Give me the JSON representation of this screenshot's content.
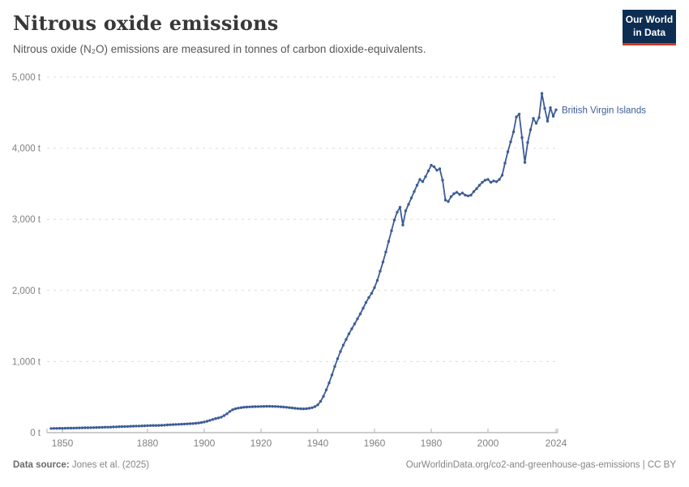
{
  "header": {
    "title": "Nitrous oxide emissions",
    "subtitle": "Nitrous oxide (N₂O) emissions are measured in tonnes of carbon dioxide-equivalents.",
    "logo": {
      "line1": "Our World",
      "line2": "in Data"
    }
  },
  "footer": {
    "source_label": "Data source:",
    "source_value": " Jones et al. (2025)",
    "link": "OurWorldinData.org/co2-and-greenhouse-gas-emissions | CC BY"
  },
  "colors": {
    "line": "#3d5c96",
    "entity_label": "#3d5c96",
    "grid": "#dcdcdc",
    "axis": "#9b9b9b",
    "tick": "#b0b0b0",
    "logo_navy": "#0d2e52",
    "logo_red": "#cc3b2a"
  },
  "chart_data": {
    "type": "line",
    "title": "Nitrous oxide emissions",
    "subtitle": "Nitrous oxide (N₂O) emissions are measured in tonnes of carbon dioxide-equivalents.",
    "entity": "British Virgin Islands",
    "unit": "t",
    "xlabel": "",
    "ylabel": "",
    "ylim": [
      0,
      5000
    ],
    "xlim": [
      1846,
      2027
    ],
    "grid": true,
    "legend_position": "end-of-line-label",
    "yticks": [
      {
        "value": 0,
        "label": "0 t"
      },
      {
        "value": 1000,
        "label": "1,000 t"
      },
      {
        "value": 2000,
        "label": "2,000 t"
      },
      {
        "value": 3000,
        "label": "3,000 t"
      },
      {
        "value": 4000,
        "label": "4,000 t"
      },
      {
        "value": 5000,
        "label": "5,000 t"
      }
    ],
    "xticks": [
      {
        "value": 1850,
        "label": "1850"
      },
      {
        "value": 1880,
        "label": "1880"
      },
      {
        "value": 1900,
        "label": "1900"
      },
      {
        "value": 1920,
        "label": "1920"
      },
      {
        "value": 1940,
        "label": "1940"
      },
      {
        "value": 1960,
        "label": "1960"
      },
      {
        "value": 1980,
        "label": "1980"
      },
      {
        "value": 2000,
        "label": "2000"
      },
      {
        "value": 2024,
        "label": "2024"
      }
    ],
    "points": [
      [
        1846,
        58
      ],
      [
        1847,
        59
      ],
      [
        1848,
        59
      ],
      [
        1849,
        60
      ],
      [
        1850,
        61
      ],
      [
        1851,
        62
      ],
      [
        1852,
        63
      ],
      [
        1853,
        63
      ],
      [
        1854,
        64
      ],
      [
        1855,
        65
      ],
      [
        1856,
        66
      ],
      [
        1857,
        67
      ],
      [
        1858,
        68
      ],
      [
        1859,
        69
      ],
      [
        1860,
        70
      ],
      [
        1861,
        71
      ],
      [
        1862,
        72
      ],
      [
        1863,
        73
      ],
      [
        1864,
        74
      ],
      [
        1865,
        76
      ],
      [
        1866,
        77
      ],
      [
        1867,
        78
      ],
      [
        1868,
        80
      ],
      [
        1869,
        81
      ],
      [
        1870,
        83
      ],
      [
        1871,
        84
      ],
      [
        1872,
        86
      ],
      [
        1873,
        87
      ],
      [
        1874,
        89
      ],
      [
        1875,
        90
      ],
      [
        1876,
        92
      ],
      [
        1877,
        93
      ],
      [
        1878,
        95
      ],
      [
        1879,
        96
      ],
      [
        1880,
        98
      ],
      [
        1881,
        99
      ],
      [
        1882,
        100
      ],
      [
        1883,
        101
      ],
      [
        1884,
        102
      ],
      [
        1885,
        103
      ],
      [
        1886,
        105
      ],
      [
        1887,
        108
      ],
      [
        1888,
        111
      ],
      [
        1889,
        113
      ],
      [
        1890,
        115
      ],
      [
        1891,
        117
      ],
      [
        1892,
        119
      ],
      [
        1893,
        121
      ],
      [
        1894,
        123
      ],
      [
        1895,
        125
      ],
      [
        1896,
        128
      ],
      [
        1897,
        131
      ],
      [
        1898,
        136
      ],
      [
        1899,
        142
      ],
      [
        1900,
        150
      ],
      [
        1901,
        160
      ],
      [
        1902,
        172
      ],
      [
        1903,
        185
      ],
      [
        1904,
        197
      ],
      [
        1905,
        207
      ],
      [
        1906,
        218
      ],
      [
        1907,
        240
      ],
      [
        1908,
        265
      ],
      [
        1909,
        298
      ],
      [
        1910,
        322
      ],
      [
        1911,
        336
      ],
      [
        1912,
        345
      ],
      [
        1913,
        352
      ],
      [
        1914,
        357
      ],
      [
        1915,
        360
      ],
      [
        1916,
        362
      ],
      [
        1917,
        364
      ],
      [
        1918,
        365
      ],
      [
        1919,
        366
      ],
      [
        1920,
        368
      ],
      [
        1921,
        369
      ],
      [
        1922,
        370
      ],
      [
        1923,
        370
      ],
      [
        1924,
        369
      ],
      [
        1925,
        368
      ],
      [
        1926,
        366
      ],
      [
        1927,
        363
      ],
      [
        1928,
        360
      ],
      [
        1929,
        356
      ],
      [
        1930,
        352
      ],
      [
        1931,
        347
      ],
      [
        1932,
        342
      ],
      [
        1933,
        338
      ],
      [
        1934,
        336
      ],
      [
        1935,
        335
      ],
      [
        1936,
        337
      ],
      [
        1937,
        342
      ],
      [
        1938,
        350
      ],
      [
        1939,
        365
      ],
      [
        1940,
        390
      ],
      [
        1941,
        440
      ],
      [
        1942,
        510
      ],
      [
        1943,
        600
      ],
      [
        1944,
        700
      ],
      [
        1945,
        810
      ],
      [
        1946,
        930
      ],
      [
        1947,
        1040
      ],
      [
        1948,
        1140
      ],
      [
        1949,
        1230
      ],
      [
        1950,
        1310
      ],
      [
        1951,
        1390
      ],
      [
        1952,
        1460
      ],
      [
        1953,
        1530
      ],
      [
        1954,
        1600
      ],
      [
        1955,
        1670
      ],
      [
        1956,
        1750
      ],
      [
        1957,
        1830
      ],
      [
        1958,
        1900
      ],
      [
        1959,
        1960
      ],
      [
        1960,
        2040
      ],
      [
        1961,
        2140
      ],
      [
        1962,
        2270
      ],
      [
        1963,
        2400
      ],
      [
        1964,
        2540
      ],
      [
        1965,
        2690
      ],
      [
        1966,
        2840
      ],
      [
        1967,
        2990
      ],
      [
        1968,
        3100
      ],
      [
        1969,
        3170
      ],
      [
        1970,
        2920
      ],
      [
        1971,
        3120
      ],
      [
        1972,
        3210
      ],
      [
        1973,
        3300
      ],
      [
        1974,
        3390
      ],
      [
        1975,
        3480
      ],
      [
        1976,
        3560
      ],
      [
        1977,
        3530
      ],
      [
        1978,
        3600
      ],
      [
        1979,
        3680
      ],
      [
        1980,
        3760
      ],
      [
        1981,
        3740
      ],
      [
        1982,
        3690
      ],
      [
        1983,
        3710
      ],
      [
        1984,
        3550
      ],
      [
        1985,
        3270
      ],
      [
        1986,
        3250
      ],
      [
        1987,
        3320
      ],
      [
        1988,
        3360
      ],
      [
        1989,
        3380
      ],
      [
        1990,
        3350
      ],
      [
        1991,
        3370
      ],
      [
        1992,
        3340
      ],
      [
        1993,
        3330
      ],
      [
        1994,
        3340
      ],
      [
        1995,
        3390
      ],
      [
        1996,
        3430
      ],
      [
        1997,
        3480
      ],
      [
        1998,
        3520
      ],
      [
        1999,
        3550
      ],
      [
        2000,
        3560
      ],
      [
        2001,
        3520
      ],
      [
        2002,
        3540
      ],
      [
        2003,
        3530
      ],
      [
        2004,
        3560
      ],
      [
        2005,
        3620
      ],
      [
        2006,
        3790
      ],
      [
        2007,
        3950
      ],
      [
        2008,
        4090
      ],
      [
        2009,
        4230
      ],
      [
        2010,
        4440
      ],
      [
        2011,
        4480
      ],
      [
        2012,
        4150
      ],
      [
        2013,
        3800
      ],
      [
        2014,
        4080
      ],
      [
        2015,
        4260
      ],
      [
        2016,
        4420
      ],
      [
        2017,
        4350
      ],
      [
        2018,
        4430
      ],
      [
        2019,
        4770
      ],
      [
        2020,
        4560
      ],
      [
        2021,
        4380
      ],
      [
        2022,
        4570
      ],
      [
        2023,
        4450
      ],
      [
        2024,
        4540
      ]
    ]
  }
}
